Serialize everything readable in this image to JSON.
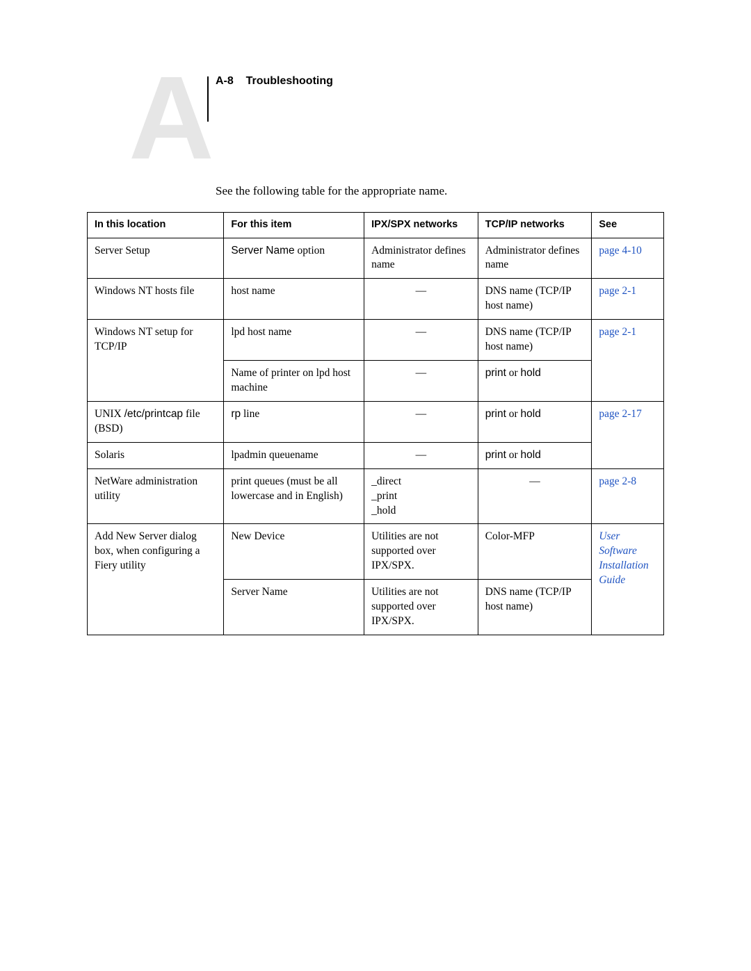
{
  "header": {
    "big_letter": "A",
    "page_ref": "A-8",
    "section": "Troubleshooting"
  },
  "intro": "See the following table for the appropriate name.",
  "columns": {
    "c1": "In this location",
    "c2": "For this item",
    "c3": "IPX/SPX networks",
    "c4": "TCP/IP networks",
    "c5": "See"
  },
  "rows": {
    "r1": {
      "loc": "Server Setup",
      "item_sans": "Server Name",
      "item_tail": " option",
      "ipx": "Administrator defines name",
      "tcp": "Administrator defines name",
      "see": "page 4-10"
    },
    "r2": {
      "loc": "Windows NT hosts file",
      "item": "host name",
      "ipx": "—",
      "tcp": "DNS name (TCP/IP host name)",
      "see": "page 2-1"
    },
    "r3a": {
      "loc": "Windows NT setup for TCP/IP",
      "item": "lpd host name",
      "ipx": "—",
      "tcp": "DNS name (TCP/IP host name)",
      "see": "page 2-1"
    },
    "r3b": {
      "item": "Name of printer on lpd host machine",
      "ipx": "—",
      "tcp_sans_a": "print",
      "tcp_mid": " or ",
      "tcp_sans_b": "hold"
    },
    "r4a": {
      "loc_a": "UNIX ",
      "loc_sans": "/etc/printcap",
      "loc_b": " file (BSD)",
      "item_sans": "rp",
      "item_tail": " line",
      "ipx": "—",
      "tcp_sans_a": "print",
      "tcp_mid": " or ",
      "tcp_sans_b": "hold",
      "see": "page 2-17"
    },
    "r4b": {
      "loc": "Solaris",
      "item": "lpadmin queuename",
      "ipx": "—",
      "tcp_sans_a": "print",
      "tcp_mid": " or ",
      "tcp_sans_b": "hold"
    },
    "r5": {
      "loc": "NetWare administration utility",
      "item": "print queues (must be all lowercase and in English)",
      "ipx": "_direct\n_print\n_hold",
      "tcp": "—",
      "see": "page 2-8"
    },
    "r6a": {
      "loc": "Add New Server dialog box, when configuring a Fiery utility",
      "item": "New Device",
      "ipx": "Utilities are not supported over IPX/SPX.",
      "tcp": "Color-MFP",
      "see": "User Software Installation Guide"
    },
    "r6b": {
      "item": "Server Name",
      "ipx": "Utilities are not supported over IPX/SPX.",
      "tcp": "DNS name (TCP/IP host name)"
    }
  },
  "colors": {
    "link": "#2054c2",
    "ghost": "#e6e6e6",
    "text": "#000000",
    "border": "#000000",
    "background": "#ffffff"
  }
}
